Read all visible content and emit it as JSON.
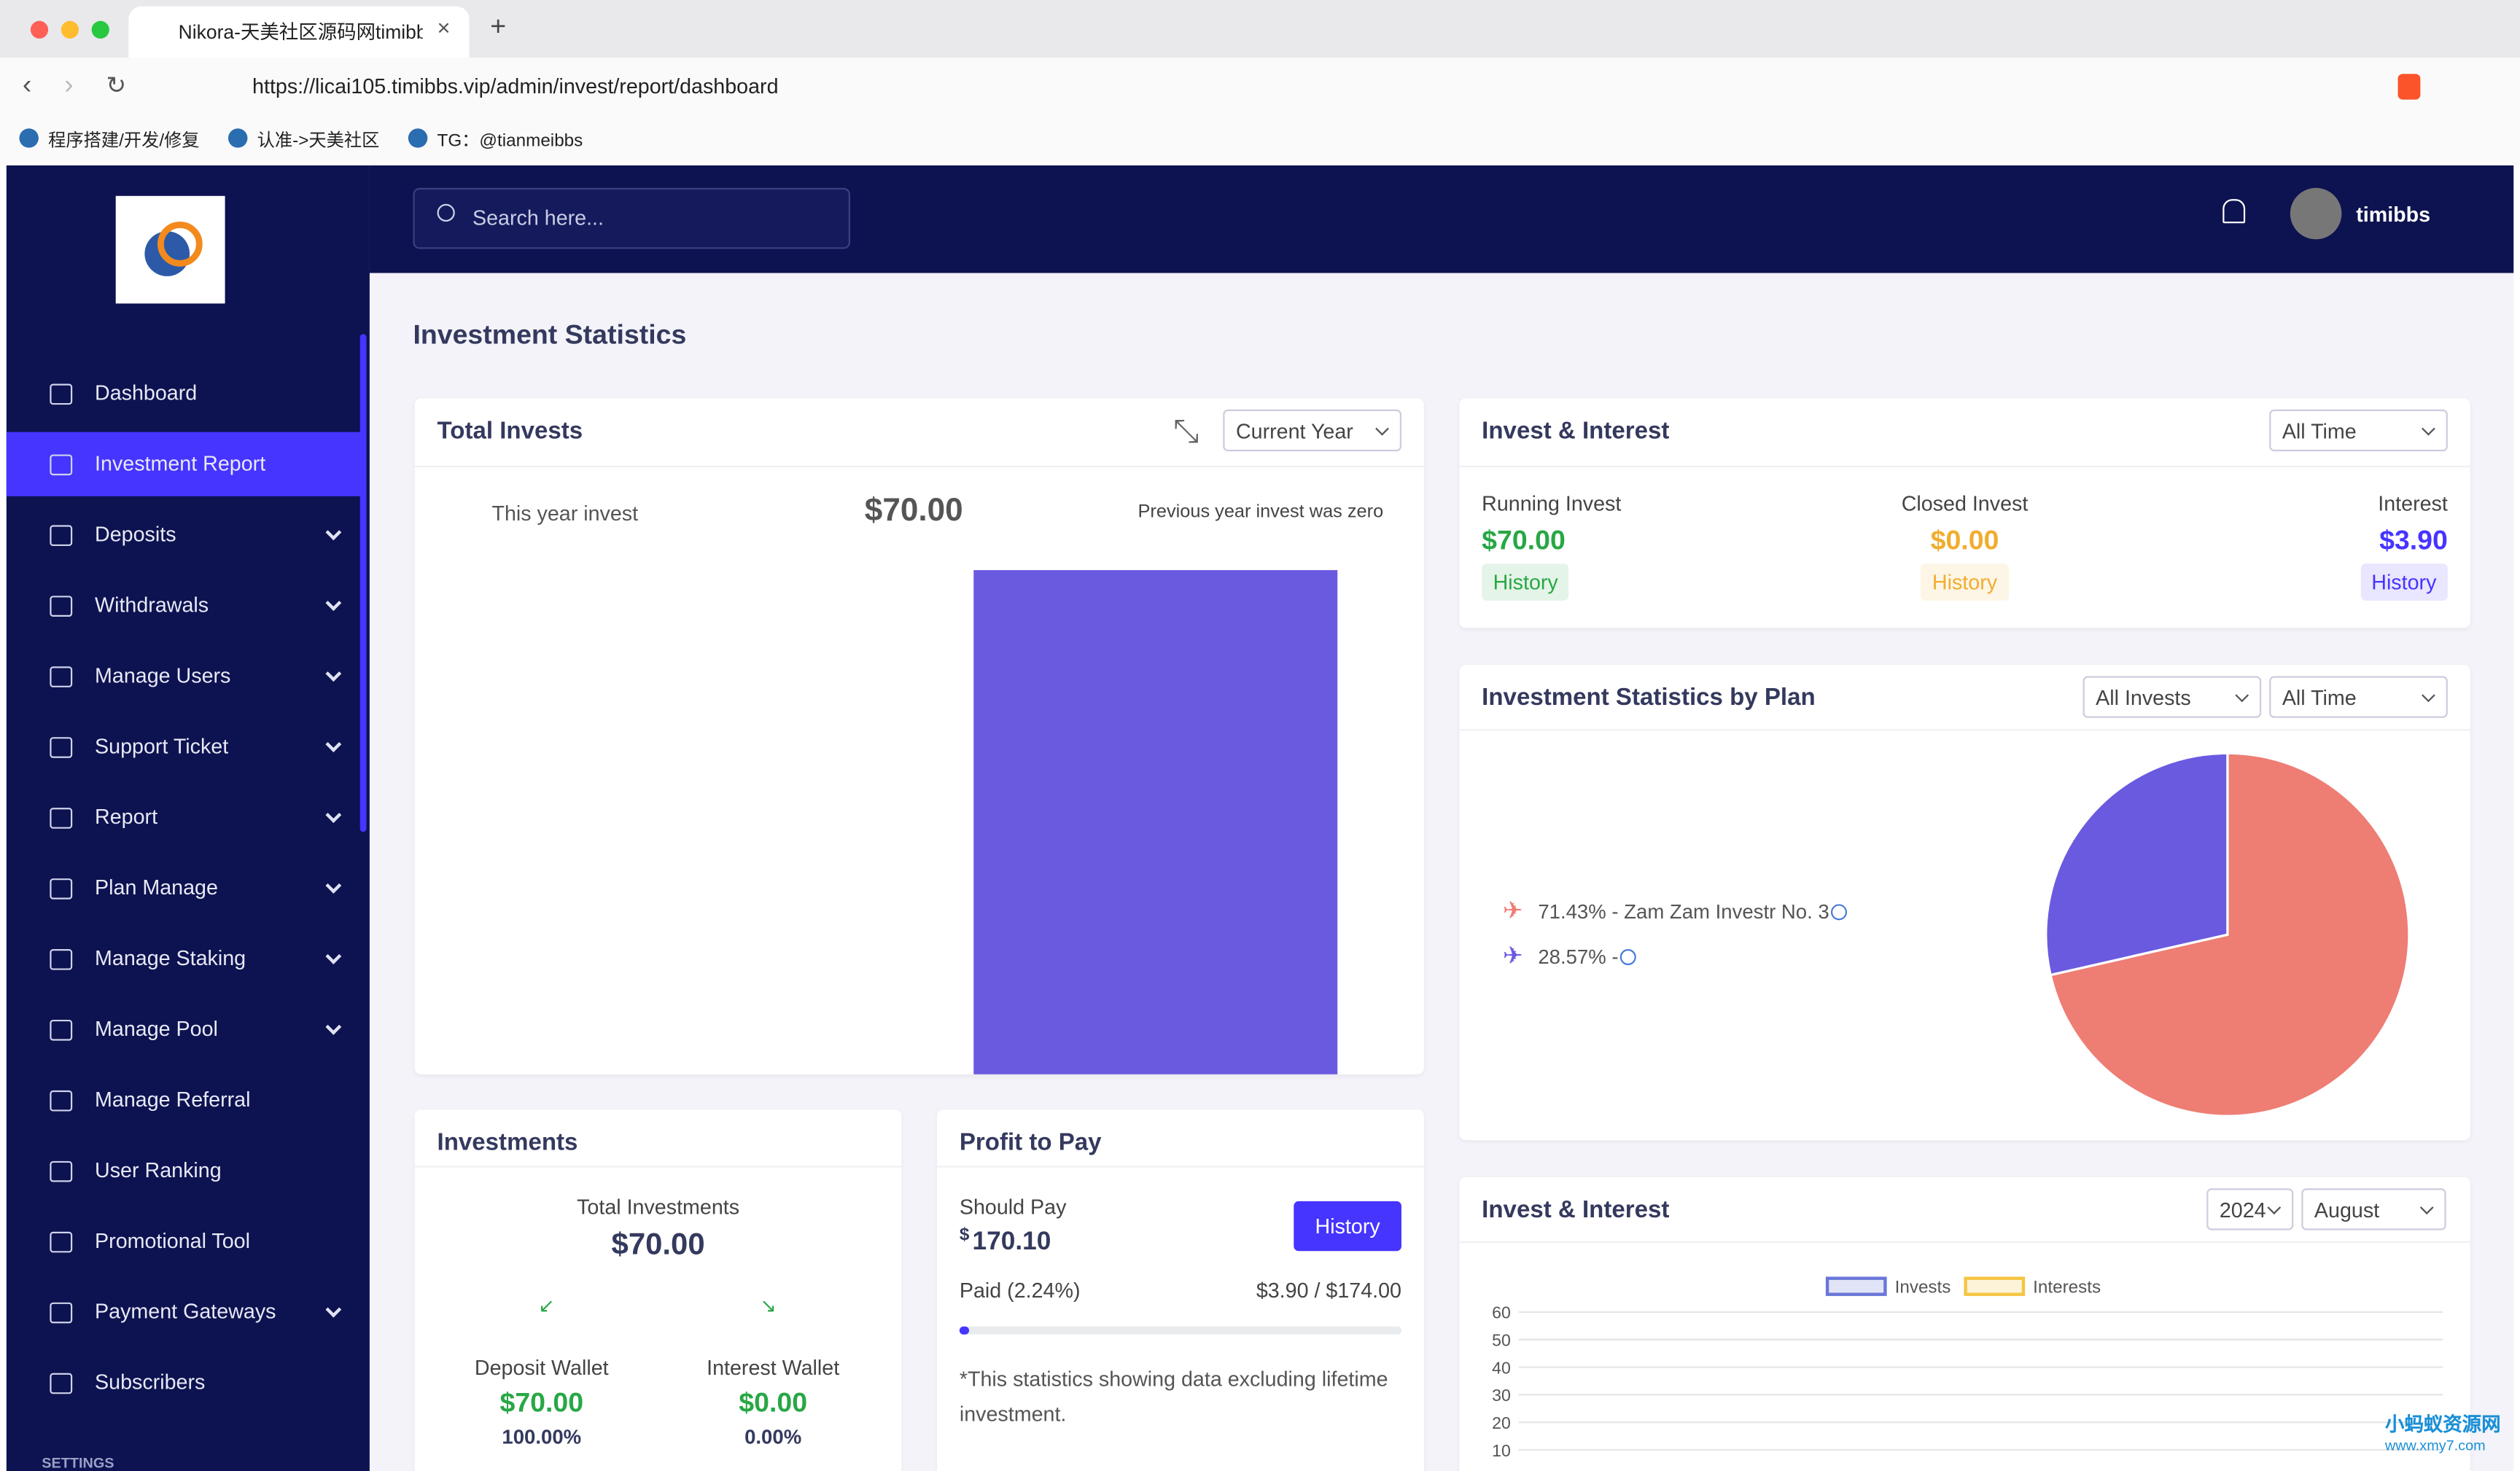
{
  "browser": {
    "tab_title": "Nikora-天美社区源码网timibbs",
    "url": "https://licai105.timibbs.vip/admin/invest/report/dashboard",
    "bookmarks": [
      "程序搭建/开发/修复",
      "认准->天美社区",
      "TG：@tianmeibbs"
    ]
  },
  "sidebar": {
    "menu": [
      {
        "label": "Dashboard",
        "has_children": false
      },
      {
        "label": "Investment Report",
        "has_children": false,
        "active": true
      },
      {
        "label": "Deposits",
        "has_children": true
      },
      {
        "label": "Withdrawals",
        "has_children": true
      },
      {
        "label": "Manage Users",
        "has_children": true
      },
      {
        "label": "Support Ticket",
        "has_children": true
      },
      {
        "label": "Report",
        "has_children": true
      },
      {
        "label": "Plan Manage",
        "has_children": true
      },
      {
        "label": "Manage Staking",
        "has_children": true
      },
      {
        "label": "Manage Pool",
        "has_children": true
      },
      {
        "label": "Manage Referral",
        "has_children": false
      },
      {
        "label": "User Ranking",
        "has_children": false
      },
      {
        "label": "Promotional Tool",
        "has_children": false
      },
      {
        "label": "Payment Gateways",
        "has_children": true
      },
      {
        "label": "Subscribers",
        "has_children": false
      }
    ],
    "section": "SETTINGS"
  },
  "header": {
    "search_placeholder": "Search here...",
    "username": "timibbs"
  },
  "page_title": "Investment Statistics",
  "total_invests": {
    "title": "Total Invests",
    "period": "Current Year",
    "this_year_label": "This year invest",
    "this_year_value": "$70.00",
    "previous_note": "Previous year invest was zero",
    "chart": {
      "type": "bar",
      "categories": [
        null,
        null
      ],
      "values": [
        0,
        70
      ],
      "color": "#6a5ae0",
      "ylim": [
        0,
        70
      ]
    }
  },
  "invest_interest": {
    "title": "Invest & Interest",
    "period": "All Time",
    "items": [
      {
        "label": "Running Invest",
        "value": "$70.00",
        "button": "History",
        "color": "#28a745"
      },
      {
        "label": "Closed Invest",
        "value": "$0.00",
        "button": "History",
        "color": "#f0ad2f"
      },
      {
        "label": "Interest",
        "value": "$3.90",
        "button": "History",
        "color": "#4634ff"
      }
    ]
  },
  "by_plan": {
    "title": "Investment Statistics by Plan",
    "filters": [
      "All Invests",
      "All Time"
    ],
    "chart": {
      "type": "pie",
      "labels": [
        "71.43% - Zam Zam Investr No. 3",
        "28.57% -"
      ],
      "values": [
        71.43,
        28.57
      ],
      "colors": [
        "#ee7d74",
        "#6a5ae0"
      ]
    }
  },
  "invest_interest_chart": {
    "title": "Invest & Interest",
    "year": "2024",
    "month": "August",
    "chart": {
      "type": "line",
      "series": [
        {
          "name": "Invests",
          "color": "#6a76d8"
        },
        {
          "name": "Interests",
          "color": "#f5c542"
        }
      ],
      "ylim": [
        0,
        60
      ],
      "yticks": [
        10,
        20,
        30,
        40,
        50,
        60
      ],
      "grid": true
    }
  },
  "investments": {
    "title": "Investments",
    "total_label": "Total Investments",
    "total_value": "$70.00",
    "wallets": [
      {
        "label": "Deposit Wallet",
        "value": "$70.00",
        "percent": "100.00%"
      },
      {
        "label": "Interest Wallet",
        "value": "$0.00",
        "percent": "0.00%"
      }
    ]
  },
  "profit_to_pay": {
    "title": "Profit to Pay",
    "should_pay_label": "Should Pay",
    "currency": "$",
    "should_pay_value": "170.10",
    "button": "History",
    "paid_label": "Paid (2.24%)",
    "paid_value": "$3.90 / $174.00",
    "progress": 2.24,
    "note": "*This statistics showing data excluding lifetime investment."
  },
  "watermark": {
    "title": "小蚂蚁资源网",
    "url": "www.xmy7.com"
  }
}
